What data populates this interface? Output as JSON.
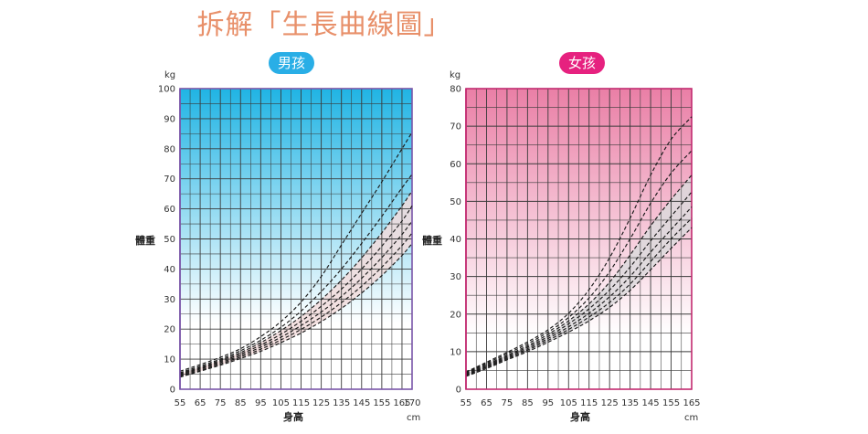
{
  "page_title": "拆解「生長曲線圖」",
  "chart_data": [
    {
      "type": "line",
      "badge": "男孩",
      "badge_color": "#29aee6",
      "ylabel": "體重",
      "y_unit": "kg",
      "xlabel": "身高",
      "x_unit": "cm",
      "xlim": [
        55,
        170
      ],
      "ylim": [
        0,
        100
      ],
      "x_ticks": [
        "55",
        "65",
        "75",
        "85",
        "95",
        "105",
        "115",
        "125",
        "135",
        "145",
        "155",
        "165",
        "170"
      ],
      "y_ticks": [
        "0",
        "10",
        "20",
        "30",
        "40",
        "50",
        "60",
        "70",
        "80",
        "90",
        "100"
      ],
      "gradient_top": "#20b4e4",
      "gradient_bottom": "#ffffff",
      "band_color": "#f2dcdc",
      "band_upper_series": 2,
      "band_lower_series": 6,
      "x": [
        55,
        65,
        75,
        85,
        95,
        105,
        115,
        125,
        135,
        145,
        155,
        165,
        170
      ],
      "series": [
        {
          "values": [
            6.0,
            8.2,
            10.6,
            13.5,
            17.5,
            22.5,
            29.0,
            37.5,
            48.0,
            58.5,
            69.0,
            80.0,
            85.5
          ]
        },
        {
          "values": [
            5.5,
            7.7,
            10.0,
            12.8,
            16.3,
            20.6,
            26.0,
            32.5,
            40.0,
            48.5,
            57.5,
            67.0,
            71.5
          ]
        },
        {
          "values": [
            5.2,
            7.3,
            9.6,
            12.2,
            15.5,
            19.5,
            24.2,
            29.8,
            36.3,
            43.7,
            52.0,
            61.0,
            66.0
          ]
        },
        {
          "values": [
            4.9,
            7.0,
            9.2,
            11.7,
            14.7,
            18.3,
            22.6,
            27.6,
            33.3,
            40.0,
            47.6,
            56.0,
            61.0
          ]
        },
        {
          "values": [
            4.6,
            6.7,
            8.8,
            11.2,
            14.0,
            17.3,
            21.2,
            25.7,
            30.9,
            36.9,
            43.8,
            51.5,
            56.0
          ]
        },
        {
          "values": [
            4.3,
            6.3,
            8.4,
            10.7,
            13.3,
            16.4,
            19.9,
            24.0,
            28.8,
            34.3,
            40.6,
            47.8,
            52.0
          ]
        },
        {
          "values": [
            4.0,
            6.0,
            8.0,
            10.2,
            12.6,
            15.5,
            18.7,
            22.5,
            26.9,
            32.0,
            37.8,
            44.5,
            48.5
          ]
        }
      ]
    },
    {
      "type": "line",
      "badge": "女孩",
      "badge_color": "#e6217f",
      "ylabel": "體重",
      "y_unit": "kg",
      "xlabel": "身高",
      "x_unit": "cm",
      "xlim": [
        55,
        165
      ],
      "ylim": [
        0,
        80
      ],
      "x_ticks": [
        "55",
        "65",
        "75",
        "85",
        "95",
        "105",
        "115",
        "125",
        "135",
        "145",
        "155",
        "165"
      ],
      "y_ticks": [
        "0",
        "10",
        "20",
        "30",
        "40",
        "50",
        "60",
        "70",
        "80"
      ],
      "gradient_top": "#ea7fa6",
      "gradient_bottom": "#ffffff",
      "band_color": "#dcd9dc",
      "band_upper_series": 2,
      "band_lower_series": 6,
      "x": [
        55,
        65,
        75,
        85,
        95,
        105,
        115,
        125,
        135,
        145,
        155,
        165
      ],
      "series": [
        {
          "values": [
            4.6,
            7.2,
            9.8,
            12.6,
            15.8,
            20.2,
            26.5,
            35.0,
            45.5,
            57.0,
            66.5,
            72.5
          ]
        },
        {
          "values": [
            4.4,
            6.9,
            9.4,
            12.1,
            15.2,
            19.1,
            24.3,
            31.3,
            40.0,
            49.5,
            57.5,
            63.5
          ]
        },
        {
          "values": [
            4.2,
            6.6,
            9.0,
            11.6,
            14.6,
            18.2,
            22.7,
            28.5,
            35.7,
            43.5,
            50.5,
            57.0
          ]
        },
        {
          "values": [
            4.0,
            6.3,
            8.7,
            11.2,
            14.0,
            17.4,
            21.4,
            26.4,
            32.5,
            39.5,
            46.0,
            52.5
          ]
        },
        {
          "values": [
            3.8,
            6.0,
            8.4,
            10.8,
            13.5,
            16.6,
            20.2,
            24.6,
            30.0,
            36.5,
            42.5,
            48.5
          ]
        },
        {
          "values": [
            3.6,
            5.8,
            8.1,
            10.4,
            13.0,
            15.9,
            19.2,
            23.1,
            28.0,
            34.0,
            40.0,
            45.5
          ]
        },
        {
          "values": [
            3.4,
            5.5,
            7.8,
            10.0,
            12.5,
            15.2,
            18.2,
            21.8,
            26.3,
            31.8,
            37.5,
            43.0
          ]
        }
      ]
    }
  ]
}
